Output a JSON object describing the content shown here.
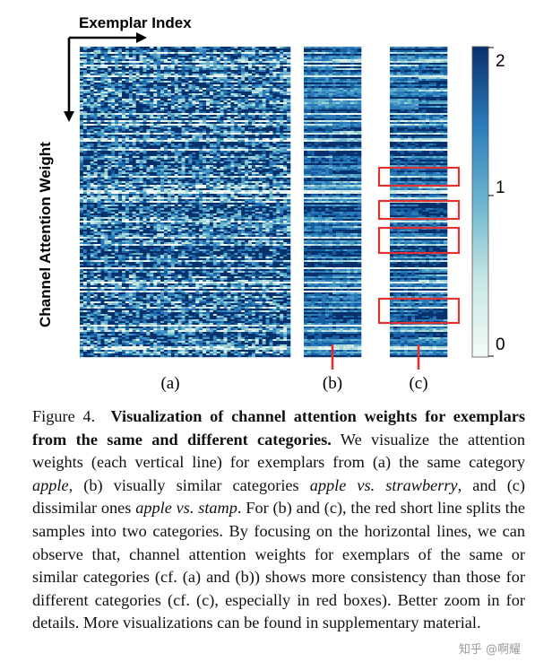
{
  "figure": {
    "x_axis_label": "Exemplar Index",
    "y_axis_label": "Channel  Attention  Weight",
    "panels": [
      {
        "id": "a",
        "label": "(a)",
        "has_split_line": false
      },
      {
        "id": "b",
        "label": "(b)",
        "has_split_line": true
      },
      {
        "id": "c",
        "label": "(c)",
        "has_split_line": true,
        "red_boxes": 4
      }
    ],
    "colorbar": {
      "ticks": [
        "2",
        "1",
        "0"
      ],
      "range": [
        0,
        2
      ]
    },
    "colors": {
      "dark": "#08306b",
      "mid": "#2b7bba",
      "light": "#c6e6e3",
      "highlight": "#e03030"
    }
  },
  "caption": {
    "prefix": "Figure 4.",
    "title": "Visualization of channel attention weights for exemplars from the same and different categories.",
    "part1": "We visualize the attention weights (each vertical line) for exemplars from (a) the same category",
    "apple": "apple",
    "part2": ", (b) visually similar categories",
    "apple_vs_strawberry": "apple vs. strawberry",
    "part3": ", and (c) dissimilar ones",
    "apple_vs_stamp": "apple vs. stamp",
    "part4": ". For (b) and (c), the red short line splits the samples into two categories. By focusing on the horizontal lines, we can observe that, channel attention weights for exemplars of the same or similar categories (cf. (a) and (b)) shows more consistency than those for different categories (cf. (c), especially in red boxes). Better zoom in for details. More visualizations can be found in supplementary material."
  },
  "watermark": "知乎 @啊耀"
}
